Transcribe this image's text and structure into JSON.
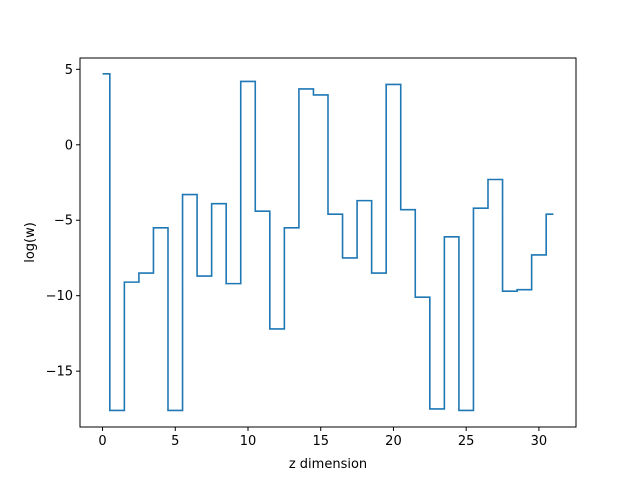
{
  "chart_data": {
    "type": "line",
    "drawstyle": "steps-mid",
    "title": "",
    "xlabel": "z dimension",
    "ylabel": "log(w)",
    "xlim": [
      -1.55,
      32.55
    ],
    "ylim": [
      -18.7,
      5.75
    ],
    "xticks": [
      0,
      5,
      10,
      15,
      20,
      25,
      30
    ],
    "yticks": [
      5,
      0,
      -5,
      -10,
      -15
    ],
    "ytick_labels": [
      "5",
      "0",
      "−5",
      "−10",
      "−15"
    ],
    "grid": false,
    "line_color": "#1f77b4",
    "series": [
      {
        "x": [
          0,
          1,
          2,
          3,
          4,
          5,
          6,
          7,
          8,
          9,
          10,
          11,
          12,
          13,
          14,
          15,
          16,
          17,
          18,
          19,
          20,
          21,
          22,
          23,
          24,
          25,
          26,
          27,
          28,
          29,
          30,
          31
        ],
        "values": [
          4.7,
          -17.6,
          -9.1,
          -8.5,
          -5.5,
          -17.6,
          -3.3,
          -8.7,
          -3.9,
          -9.2,
          4.2,
          -4.4,
          -12.2,
          -5.5,
          3.7,
          3.3,
          -4.6,
          -7.5,
          -3.7,
          -8.5,
          4.0,
          -4.3,
          -10.1,
          -17.5,
          -6.1,
          -17.6,
          -4.2,
          -2.3,
          -9.7,
          -9.6,
          -7.3,
          -4.6
        ]
      }
    ]
  }
}
